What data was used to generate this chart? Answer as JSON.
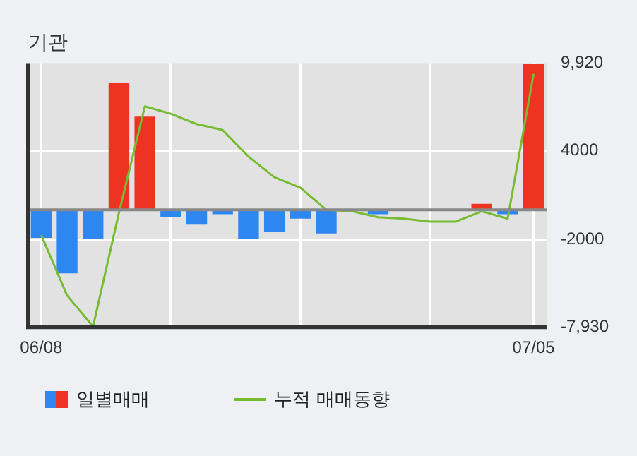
{
  "chart_data": {
    "type": "bar",
    "title": "기관",
    "categories": [
      "06/08",
      null,
      null,
      null,
      null,
      null,
      null,
      null,
      null,
      null,
      null,
      null,
      null,
      null,
      null,
      null,
      null,
      null,
      null,
      "07/05"
    ],
    "series": [
      {
        "name": "일별매매",
        "colors": [
          "#2e86f0",
          "#2e86f0",
          "#2e86f0",
          "#ee3322",
          "#ee3322",
          "#2e86f0",
          "#2e86f0",
          "#2e86f0",
          "#2e86f0",
          "#2e86f0",
          "#2e86f0",
          "#2e86f0",
          "#2e86f0",
          "#2e86f0",
          "#2e86f0",
          "#2e86f0",
          "#2e86f0",
          "#ee3322",
          "#2e86f0",
          "#ee3322"
        ],
        "values": [
          -1900,
          -4300,
          -2000,
          8600,
          6300,
          -500,
          -1000,
          -300,
          -2000,
          -1500,
          -600,
          -1600,
          null,
          -300,
          null,
          null,
          null,
          400,
          -300,
          9900
        ]
      },
      {
        "name": "누적 매매동향",
        "type": "line",
        "color": "#77bb33",
        "values": [
          -1700,
          -5800,
          -7900,
          -200,
          7000,
          6500,
          5800,
          5400,
          3600,
          2200,
          1500,
          0,
          -100,
          -500,
          -600,
          -800,
          -800,
          -100,
          -600,
          9200
        ]
      }
    ],
    "ylim": [
      -7930,
      9920
    ],
    "yticks": [
      {
        "value": 9920,
        "label": "9,920"
      },
      4000,
      -2000,
      {
        "value": -7930,
        "label": "-7,930"
      }
    ],
    "grid": true,
    "legend": "bottom"
  }
}
